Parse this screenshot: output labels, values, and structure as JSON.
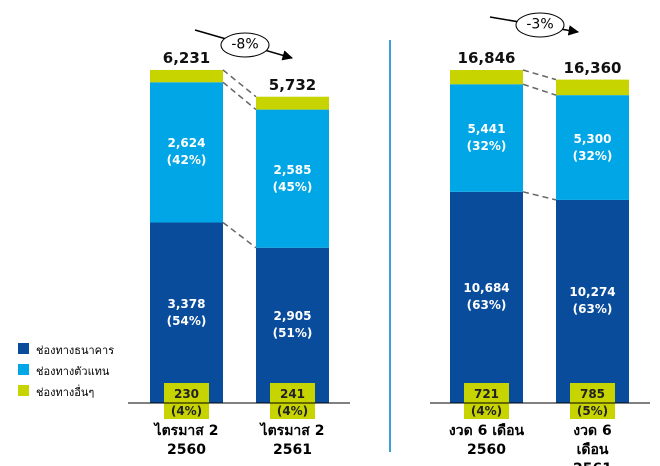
{
  "chart_data": [
    {
      "type": "stacked_bar",
      "categories": [
        "ไตรมาส 2\n2560",
        "ไตรมาส 2\n2561"
      ],
      "series": [
        {
          "name": "ช่องทางธนาคาร",
          "color": "#0a4c9c",
          "values": [
            3378,
            2905
          ],
          "value_labels": [
            "3,378\n(54%)",
            "2,905\n(51%)"
          ]
        },
        {
          "name": "ช่องทางตัวแทน",
          "color": "#00a6e6",
          "values": [
            2624,
            2585
          ],
          "value_labels": [
            "2,624\n(42%)",
            "2,585\n(45%)"
          ]
        },
        {
          "name": "ช่องทางอื่นๆ",
          "color": "#c8d400",
          "values": [
            230,
            241
          ],
          "value_labels": [
            "230\n(4%)",
            "241\n(4%)"
          ]
        }
      ],
      "totals": [
        6231,
        5732
      ],
      "total_labels": [
        "6,231",
        "5,732"
      ],
      "change": "-8%"
    },
    {
      "type": "stacked_bar",
      "categories": [
        "งวด 6 เดือน\n2560",
        "งวด 6 เดือน\n2561"
      ],
      "series": [
        {
          "color": "#0a4c9c",
          "values": [
            10684,
            10274
          ],
          "value_labels": [
            "10,684\n(63%)",
            "10,274\n(63%)"
          ]
        },
        {
          "color": "#00a6e6",
          "values": [
            5441,
            5300
          ],
          "value_labels": [
            "5,441\n(32%)",
            "5,300\n(32%)"
          ]
        },
        {
          "color": "#c8d400",
          "values": [
            721,
            785
          ],
          "value_labels": [
            "721\n(4%)",
            "785\n(5%)"
          ]
        }
      ],
      "totals": [
        16846,
        16360
      ],
      "total_labels": [
        "16,846",
        "16,360"
      ],
      "change": "-3%"
    }
  ]
}
